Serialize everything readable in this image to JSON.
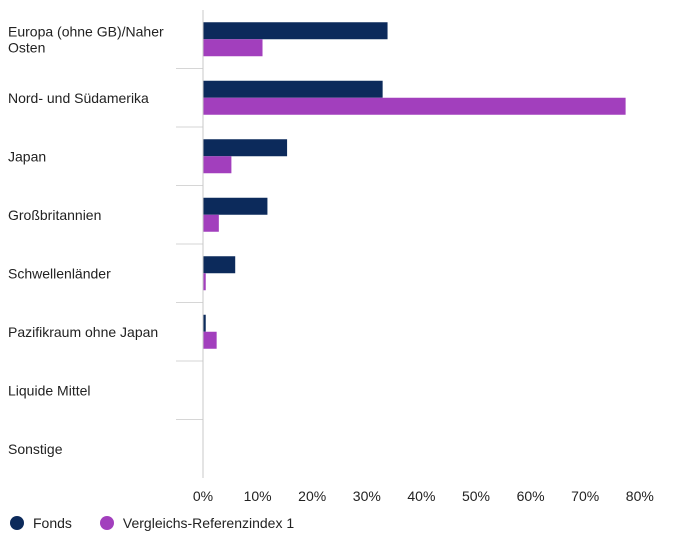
{
  "chart_data": {
    "type": "bar",
    "orientation": "horizontal",
    "categories": [
      [
        "Europa (ohne GB)/Naher",
        "Osten"
      ],
      [
        "Nord- und Südamerika"
      ],
      [
        "Japan"
      ],
      [
        "Großbritannien"
      ],
      [
        "Schwellenländer"
      ],
      [
        "Pazifikraum ohne Japan"
      ],
      [
        "Liquide Mittel"
      ],
      [
        "Sonstige"
      ]
    ],
    "series": [
      {
        "name": "Fonds",
        "color": "#0c2a5b",
        "values": [
          33.8,
          32.9,
          15.4,
          11.8,
          5.9,
          0.5,
          0,
          0
        ]
      },
      {
        "name": "Vergleichs-Referenzindex 1",
        "color": "#a23fbd",
        "values": [
          10.9,
          77.4,
          5.2,
          2.9,
          0.5,
          2.5,
          0,
          0
        ]
      }
    ],
    "xlim": [
      0,
      80
    ],
    "xticks": [
      "0%",
      "10%",
      "20%",
      "30%",
      "40%",
      "50%",
      "60%",
      "70%",
      "80%"
    ],
    "legend_position": "bottom-left",
    "grid": false
  }
}
